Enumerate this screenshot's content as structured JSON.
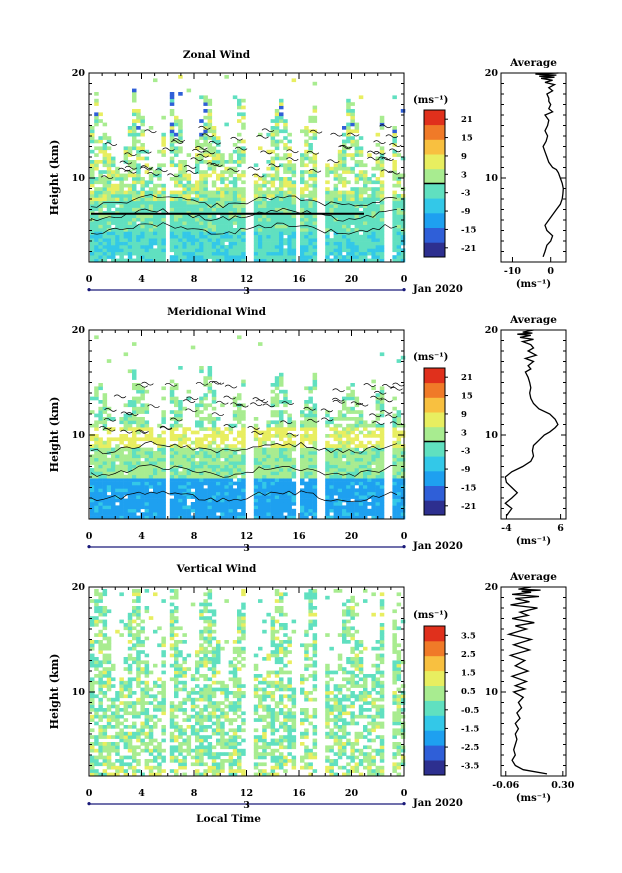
{
  "figure": {
    "date_label": "Jan 2020",
    "day_label": "3",
    "xlabel": "Local Time",
    "ylabel": "Height (km)",
    "unit": "(ms⁻¹)",
    "avg_title": "Average",
    "avg_unit": "(ms⁻¹)"
  },
  "chart_data": [
    {
      "type": "heatmap",
      "title": "Zonal Wind",
      "xlabel": "",
      "ylabel": "Height (km)",
      "x_ticks": [
        "0",
        "4",
        "8",
        "12",
        "16",
        "20",
        "0"
      ],
      "y_ticks": [
        "10",
        "20"
      ],
      "xlim": [
        0,
        24
      ],
      "ylim": [
        2,
        20
      ],
      "colorbar_ticks": [
        "21",
        "15",
        "9",
        "3",
        "-3",
        "-9",
        "-15",
        "-21"
      ],
      "colorbar_range": [
        -24,
        24
      ],
      "colorscale": [
        "#2d2f8f",
        "#2f5fd8",
        "#1ea0f0",
        "#33c8e8",
        "#60e0c0",
        "#a8ec90",
        "#e8ee60",
        "#f8c040",
        "#f07a28",
        "#e0301c"
      ],
      "gaps_hours": [
        5.8,
        12.1,
        15.7,
        17.6,
        22.7
      ],
      "scatter_top_km": 17
    },
    {
      "type": "heatmap",
      "title": "Meridional Wind",
      "xlabel": "",
      "ylabel": "Height (km)",
      "x_ticks": [
        "0",
        "4",
        "8",
        "12",
        "16",
        "20",
        "0"
      ],
      "y_ticks": [
        "10",
        "20"
      ],
      "xlim": [
        0,
        24
      ],
      "ylim": [
        2,
        20
      ],
      "colorbar_ticks": [
        "21",
        "15",
        "9",
        "3",
        "-3",
        "-9",
        "-15",
        "-21"
      ],
      "colorbar_range": [
        -24,
        24
      ],
      "colorscale": [
        "#2d2f8f",
        "#2f5fd8",
        "#1ea0f0",
        "#33c8e8",
        "#60e0c0",
        "#a8ec90",
        "#e8ee60",
        "#f8c040",
        "#f07a28",
        "#e0301c"
      ],
      "gaps_hours": [
        5.8,
        12.1,
        15.7,
        17.6,
        22.7
      ],
      "scatter_top_km": 15
    },
    {
      "type": "heatmap",
      "title": "Vertical Wind",
      "xlabel": "Local Time",
      "ylabel": "Height (km)",
      "x_ticks": [
        "0",
        "4",
        "8",
        "12",
        "16",
        "20",
        "0"
      ],
      "y_ticks": [
        "10",
        "20"
      ],
      "xlim": [
        0,
        24
      ],
      "ylim": [
        2,
        20
      ],
      "colorbar_ticks": [
        "3.5",
        "2.5",
        "1.5",
        "0.5",
        "-0.5",
        "-1.5",
        "-2.5",
        "-3.5"
      ],
      "colorbar_range": [
        -4,
        4
      ],
      "colorscale": [
        "#2d2f8f",
        "#2f5fd8",
        "#1ea0f0",
        "#33c8e8",
        "#60e0c0",
        "#a8ec90",
        "#e8ee60",
        "#f8c040",
        "#f07a28",
        "#e0301c"
      ],
      "gaps_hours": [
        5.8,
        12.1,
        15.7,
        17.6,
        22.7
      ],
      "scatter_top_km": 20
    },
    {
      "type": "line",
      "title": "Average",
      "xlabel": "(ms⁻¹)",
      "ylabel": "",
      "x_ticks": [
        "-10",
        "0"
      ],
      "xlim": [
        -13,
        4
      ],
      "y_ticks": [
        "10",
        "20"
      ],
      "ylim": [
        2,
        20
      ],
      "series": [
        {
          "x": [
            -2,
            -1.5,
            -1,
            0,
            0.5,
            -1,
            -1.5,
            -0.5,
            0.5,
            1.5,
            2.5,
            3,
            3.2,
            3.3,
            3,
            2.5,
            2,
            1.5,
            0.5,
            -0.5,
            -1,
            -1.5,
            -2,
            -1.2,
            -0.8,
            -1.5,
            -0.8,
            -0.5,
            -1.5,
            0.5,
            -0.5,
            0,
            -0.5,
            -0.5,
            -1,
            0.5,
            -0.5,
            1,
            -1.5,
            0.5,
            -2.5,
            1,
            -3,
            1.5,
            -4,
            2
          ],
          "y": [
            2.5,
            3,
            3.6,
            4,
            4.5,
            5,
            5.5,
            6,
            6.5,
            7,
            7.5,
            8,
            8.5,
            9,
            9.5,
            10,
            10.5,
            10.8,
            11,
            11.5,
            12,
            12.5,
            13,
            13.5,
            14,
            14.5,
            15,
            15.5,
            16,
            16.3,
            16.6,
            17,
            17.3,
            17.6,
            18,
            18.3,
            18.6,
            18.9,
            19.1,
            19.3,
            19.5,
            19.6,
            19.7,
            19.8,
            19.9,
            20
          ]
        }
      ]
    },
    {
      "type": "line",
      "title": "Average",
      "xlabel": "(ms⁻¹)",
      "ylabel": "",
      "x_ticks": [
        "-4",
        "6"
      ],
      "xlim": [
        -5,
        7
      ],
      "y_ticks": [
        "10",
        "20"
      ],
      "ylim": [
        2,
        20
      ],
      "series": [
        {
          "x": [
            -4,
            -3,
            -4.2,
            -3,
            -2,
            -3,
            -4,
            -4.2,
            -3,
            -1,
            0.5,
            1,
            0.8,
            1,
            2,
            3,
            4,
            5,
            5.5,
            5,
            4,
            2,
            1,
            0.5,
            0.3,
            0.5,
            0.3,
            0,
            -0.5,
            0.5,
            0,
            1,
            -0.5,
            1.5,
            0,
            1,
            0.5,
            -1,
            1,
            -1.5,
            0.5,
            -2,
            0.8,
            -1,
            1
          ],
          "y": [
            2.3,
            3,
            3.5,
            4,
            4.5,
            5,
            5.5,
            6,
            6.5,
            7,
            7.5,
            8,
            8.5,
            9,
            9.5,
            10,
            10.3,
            10.7,
            11,
            11.5,
            12,
            12.5,
            13,
            13.5,
            14,
            14.5,
            15,
            15.5,
            16,
            16.3,
            16.6,
            17,
            17.3,
            17.6,
            18,
            18.3,
            18.6,
            18.9,
            19.1,
            19.3,
            19.5,
            19.6,
            19.7,
            19.8,
            20
          ]
        }
      ]
    },
    {
      "type": "line",
      "title": "Average",
      "xlabel": "(ms⁻¹)",
      "ylabel": "",
      "x_ticks": [
        "-0.06",
        "0.30"
      ],
      "xlim": [
        -0.09,
        0.32
      ],
      "y_ticks": [
        "10",
        "20"
      ],
      "ylim": [
        2,
        20
      ],
      "series": [
        {
          "x": [
            0.2,
            0.05,
            0.0,
            -0.02,
            0.0,
            -0.01,
            0.0,
            0.01,
            0.0,
            0.02,
            0.0,
            0.03,
            0.01,
            0.04,
            0.02,
            0.05,
            -0.01,
            0.06,
            0.0,
            0.07,
            -0.02,
            0.08,
            0.0,
            0.06,
            -0.03,
            0.09,
            -0.01,
            0.1,
            -0.04,
            0.07,
            0.0,
            0.12,
            -0.02,
            0.08,
            0.03,
            0.14,
            -0.03,
            0.09,
            0.0,
            0.15,
            -0.02,
            0.1,
            0.04,
            0.16,
            0.02,
            0.1
          ],
          "y": [
            2.2,
            2.6,
            3,
            3.5,
            4,
            4.5,
            5,
            5.5,
            6,
            6.5,
            7,
            7.5,
            8,
            8.5,
            9,
            9.5,
            10,
            10.3,
            10.6,
            11,
            11.5,
            12,
            12.5,
            13,
            13.5,
            14,
            14.5,
            15,
            15.5,
            16,
            16.3,
            16.6,
            17,
            17.3,
            17.6,
            18,
            18.3,
            18.6,
            18.9,
            19.1,
            19.3,
            19.5,
            19.6,
            19.7,
            19.8,
            20
          ]
        }
      ]
    }
  ]
}
